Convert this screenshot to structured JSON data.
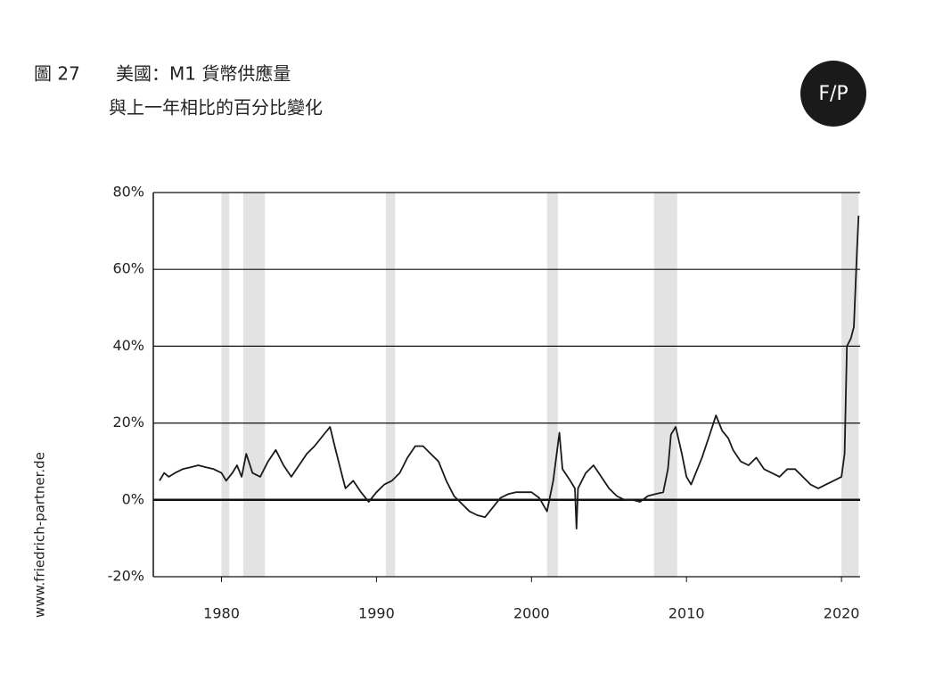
{
  "figure_label": "圖 27",
  "logo": "F/P",
  "source": "www.friedrich-partner.de",
  "chart_data": {
    "type": "line",
    "title": "美國：M1 貨幣供應量",
    "subtitle": "與上一年相比的百分比變化",
    "xlim": [
      1975.6,
      2021.2
    ],
    "ylim": [
      -20,
      80
    ],
    "xticks": [
      1980,
      1990,
      2000,
      2010,
      2020
    ],
    "yticks": [
      {
        "value": -20,
        "label": "-20%"
      },
      {
        "value": 0,
        "label": "0%"
      },
      {
        "value": 20,
        "label": "20%"
      },
      {
        "value": 40,
        "label": "40%"
      },
      {
        "value": 60,
        "label": "60%"
      },
      {
        "value": 80,
        "label": "80%"
      }
    ],
    "grid": true,
    "shaded_periods": [
      [
        1980.0,
        1980.5
      ],
      [
        1981.4,
        1982.8
      ],
      [
        1990.6,
        1991.2
      ],
      [
        2001.0,
        2001.7
      ],
      [
        2007.9,
        2009.4
      ],
      [
        2020.0,
        2021.1
      ]
    ],
    "shade_color": "#e3e3e3",
    "series": [
      {
        "color": "#1a1a1a",
        "x": [
          1976.0,
          1976.3,
          1976.6,
          1977,
          1977.5,
          1978,
          1978.5,
          1979,
          1979.5,
          1980,
          1980.3,
          1980.7,
          1981,
          1981.3,
          1981.6,
          1982,
          1982.5,
          1983,
          1983.5,
          1984,
          1984.5,
          1985,
          1985.5,
          1986,
          1986.6,
          1987,
          1987.3,
          1987.8,
          1988,
          1988.5,
          1989,
          1989.5,
          1990,
          1990.5,
          1991,
          1991.5,
          1992,
          1992.5,
          1993,
          1993.5,
          1994,
          1994.5,
          1995,
          1995.5,
          1996,
          1996.5,
          1997,
          1997.5,
          1998,
          1998.5,
          1999,
          1999.5,
          2000,
          2000.5,
          2001,
          2001.4,
          2001.8,
          2002,
          2002.5,
          2002.8,
          2002.9,
          2003,
          2003.5,
          2004,
          2004.5,
          2005,
          2005.5,
          2006,
          2006.5,
          2007,
          2007.5,
          2008,
          2008.5,
          2008.8,
          2009,
          2009.3,
          2009.7,
          2010,
          2010.3,
          2010.7,
          2011,
          2011.5,
          2011.9,
          2012.3,
          2012.7,
          2013,
          2013.5,
          2014,
          2014.5,
          2015,
          2015.5,
          2016,
          2016.5,
          2017,
          2017.5,
          2018,
          2018.5,
          2019,
          2019.5,
          2020,
          2020.2,
          2020.35,
          2020.6,
          2020.8,
          2021,
          2021.1
        ],
        "values": [
          5,
          7,
          6,
          7,
          8,
          8.5,
          9,
          8.5,
          8,
          7,
          5,
          7,
          9,
          6,
          12,
          7,
          6,
          10,
          13,
          9,
          6,
          9,
          12,
          14,
          17,
          19,
          14,
          6,
          3,
          5,
          2,
          -0.5,
          2,
          4,
          5,
          7,
          11,
          14,
          14,
          12,
          10,
          5,
          1,
          -1,
          -3,
          -4,
          -4.5,
          -2,
          0.5,
          1.5,
          2,
          2,
          2,
          0.5,
          -3,
          5,
          17.5,
          8,
          5,
          3,
          -7.5,
          3,
          7,
          9,
          6,
          3,
          1,
          0,
          0,
          -0.5,
          1,
          1.5,
          2,
          8,
          17,
          19,
          12,
          6,
          4,
          8,
          11,
          17,
          22,
          18,
          16,
          13,
          10,
          9,
          11,
          8,
          7,
          6,
          8,
          8,
          6,
          4,
          3,
          4,
          5,
          6,
          12,
          40,
          42,
          45,
          65,
          74
        ]
      }
    ]
  }
}
